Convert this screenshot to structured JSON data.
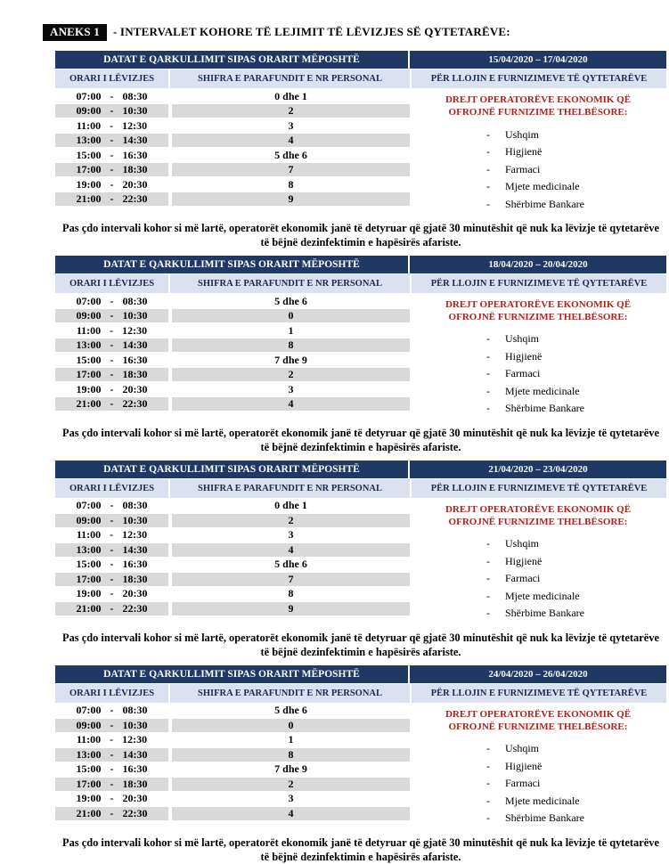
{
  "document": {
    "title_badge": "ANEKS 1",
    "title_rest": "- INTERVALET KOHORE TË LEJIMIT TË LËVIZJES SË QYTETARËVE:"
  },
  "colors": {
    "header_navy": "#1f3864",
    "subheader_bg": "#dce1f0",
    "stripe_gray": "#d9d9d9",
    "accent_red": "#a62721",
    "badge_black": "#0a0a0a"
  },
  "shared": {
    "header_label": "DATAT E QARKULLIMIT SIPAS ORARIT MËPOSHTË",
    "col_time": "ORARI I LËVIZJES",
    "col_digits": "SHIFRA E PARAFUNDIT E NR PERSONAL",
    "col_supply": "PËR LLOJIN E FURNIZIMEVE TË QYTETARËVE",
    "supply_heading_line1": "DREJT OPERATORËVE EKONOMIK QË",
    "supply_heading_line2": "OFROJNË FURNIZIME THELBËSORE:",
    "list_dash": "-",
    "supply_items": [
      "Ushqim",
      "Higjienë",
      "Farmaci",
      "Mjete medicinale",
      "Shërbime Bankare"
    ],
    "note": "Pas çdo intervali kohor si më lartë, operatorët ekonomik janë të detyruar që gjatë 30 minutëshit që nuk ka lëvizje të qytetarëve të bëjnë dezinfektimin e hapësirës afariste.",
    "times": [
      "07:00 - 08:30",
      "09:00 - 10:30",
      "11:00 - 12:30",
      "13:00 - 14:30",
      "15:00 - 16:30",
      "17:00 - 18:30",
      "19:00 - 20:30",
      "21:00 - 22:30"
    ]
  },
  "sections": [
    {
      "date_range": "15/04/2020 – 17/04/2020",
      "digits": [
        "0 dhe 1",
        "2",
        "3",
        "4",
        "5 dhe 6",
        "7",
        "8",
        "9"
      ]
    },
    {
      "date_range": "18/04/2020 – 20/04/2020",
      "digits": [
        "5 dhe 6",
        "0",
        "1",
        "8",
        "7 dhe 9",
        "2",
        "3",
        "4"
      ]
    },
    {
      "date_range": "21/04/2020 – 23/04/2020",
      "digits": [
        "0 dhe 1",
        "2",
        "3",
        "4",
        "5 dhe 6",
        "7",
        "8",
        "9"
      ]
    },
    {
      "date_range": "24/04/2020 – 26/04/2020",
      "digits": [
        "5 dhe 6",
        "0",
        "1",
        "8",
        "7 dhe 9",
        "2",
        "3",
        "4"
      ]
    }
  ]
}
